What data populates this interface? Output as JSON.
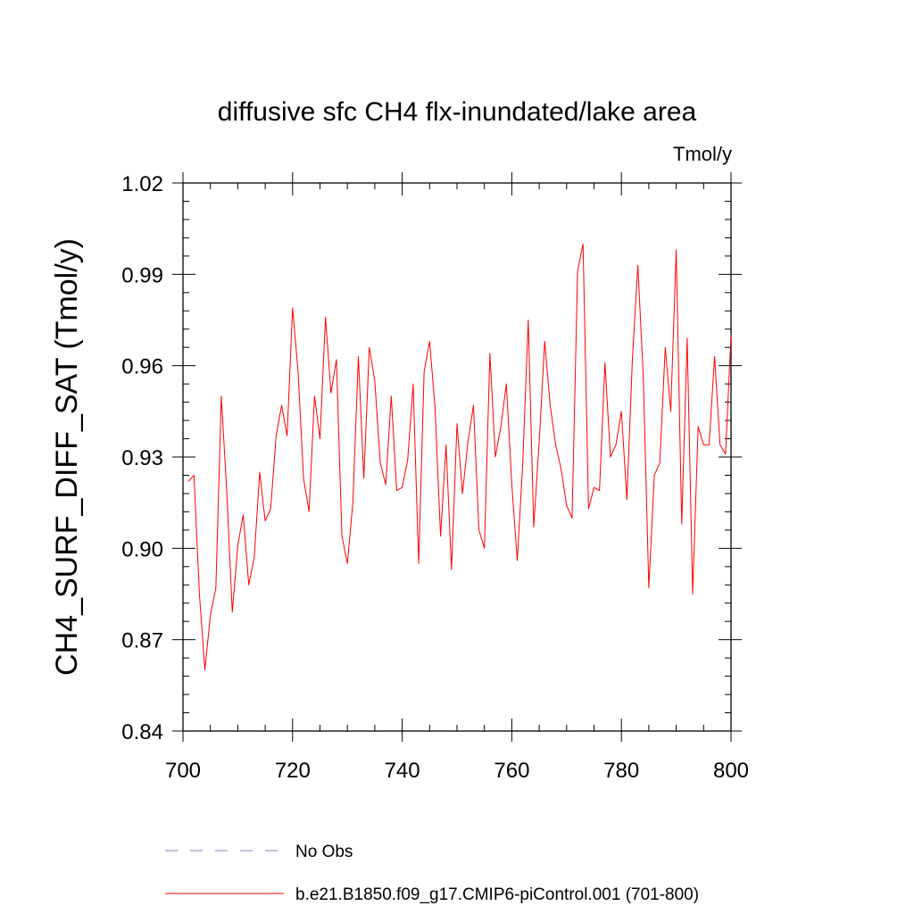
{
  "chart_data": {
    "type": "line",
    "title": "diffusive sfc CH4 flx-inundated/lake area",
    "units": "Tmol/y",
    "ylabel": "CH4_SURF_DIFF_SAT  (Tmol/y)",
    "xlabel": "",
    "xlim": [
      700,
      800
    ],
    "ylim": [
      0.84,
      1.02
    ],
    "xticks": [
      700,
      720,
      740,
      760,
      780,
      800
    ],
    "xtick_labels": [
      "700",
      "720",
      "740",
      "760",
      "780",
      "800"
    ],
    "yticks": [
      0.84,
      0.87,
      0.9,
      0.93,
      0.96,
      0.99,
      1.02
    ],
    "ytick_labels": [
      "0.84",
      "0.87",
      "0.90",
      "0.93",
      "0.96",
      "0.99",
      "1.02"
    ],
    "legend": [
      {
        "label": "No Obs",
        "color": "#8080c0",
        "style": "dashed"
      },
      {
        "label": "b.e21.B1850.f09_g17.CMIP6-piControl.001 (701-800)",
        "color": "#ff0000",
        "style": "solid"
      }
    ],
    "series": [
      {
        "name": "b.e21.B1850.f09_g17.CMIP6-piControl.001 (701-800)",
        "color": "#ff0000",
        "x": [
          701,
          702,
          703,
          704,
          705,
          706,
          707,
          708,
          709,
          710,
          711,
          712,
          713,
          714,
          715,
          716,
          717,
          718,
          719,
          720,
          721,
          722,
          723,
          724,
          725,
          726,
          727,
          728,
          729,
          730,
          731,
          732,
          733,
          734,
          735,
          736,
          737,
          738,
          739,
          740,
          741,
          742,
          743,
          744,
          745,
          746,
          747,
          748,
          749,
          750,
          751,
          752,
          753,
          754,
          755,
          756,
          757,
          758,
          759,
          760,
          761,
          762,
          763,
          764,
          765,
          766,
          767,
          768,
          769,
          770,
          771,
          772,
          773,
          774,
          775,
          776,
          777,
          778,
          779,
          780,
          781,
          782,
          783,
          784,
          785,
          786,
          787,
          788,
          789,
          790,
          791,
          792,
          793,
          794,
          795,
          796,
          797,
          798,
          799,
          800
        ],
        "values": [
          0.922,
          0.924,
          0.885,
          0.86,
          0.878,
          0.887,
          0.95,
          0.918,
          0.879,
          0.901,
          0.911,
          0.888,
          0.897,
          0.925,
          0.909,
          0.913,
          0.937,
          0.947,
          0.937,
          0.979,
          0.958,
          0.923,
          0.912,
          0.95,
          0.936,
          0.976,
          0.951,
          0.962,
          0.904,
          0.895,
          0.915,
          0.963,
          0.923,
          0.966,
          0.955,
          0.928,
          0.921,
          0.95,
          0.919,
          0.92,
          0.929,
          0.954,
          0.895,
          0.958,
          0.968,
          0.946,
          0.904,
          0.934,
          0.893,
          0.941,
          0.918,
          0.935,
          0.947,
          0.906,
          0.9,
          0.964,
          0.93,
          0.94,
          0.954,
          0.921,
          0.896,
          0.928,
          0.975,
          0.907,
          0.935,
          0.968,
          0.947,
          0.934,
          0.926,
          0.914,
          0.91,
          0.991,
          1.0,
          0.913,
          0.92,
          0.919,
          0.961,
          0.93,
          0.934,
          0.945,
          0.916,
          0.962,
          0.993,
          0.956,
          0.887,
          0.924,
          0.928,
          0.966,
          0.945,
          0.998,
          0.908,
          0.969,
          0.885,
          0.94,
          0.934,
          0.934,
          0.963,
          0.934,
          0.931,
          0.97
        ]
      }
    ]
  }
}
